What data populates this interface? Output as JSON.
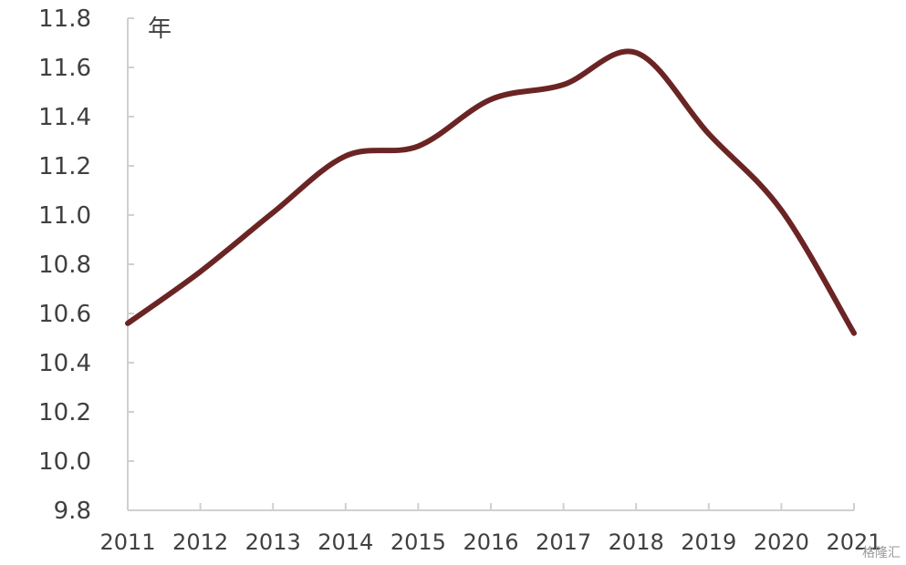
{
  "chart_data": {
    "type": "line",
    "unit_label": "年",
    "x": [
      "2011",
      "2012",
      "2013",
      "2014",
      "2015",
      "2016",
      "2017",
      "2018",
      "2019",
      "2020",
      "2021"
    ],
    "series": [
      {
        "values": [
          10.56,
          10.77,
          11.01,
          11.24,
          11.28,
          11.47,
          11.53,
          11.66,
          11.33,
          11.02,
          10.52
        ]
      }
    ],
    "y_ticks": [
      "9.8",
      "10.0",
      "10.2",
      "10.4",
      "10.6",
      "10.8",
      "11.0",
      "11.2",
      "11.4",
      "11.6",
      "11.8"
    ],
    "ylim": [
      9.8,
      11.8
    ],
    "grid": false,
    "line_color": "#6b2424"
  },
  "watermark": "格隆汇"
}
